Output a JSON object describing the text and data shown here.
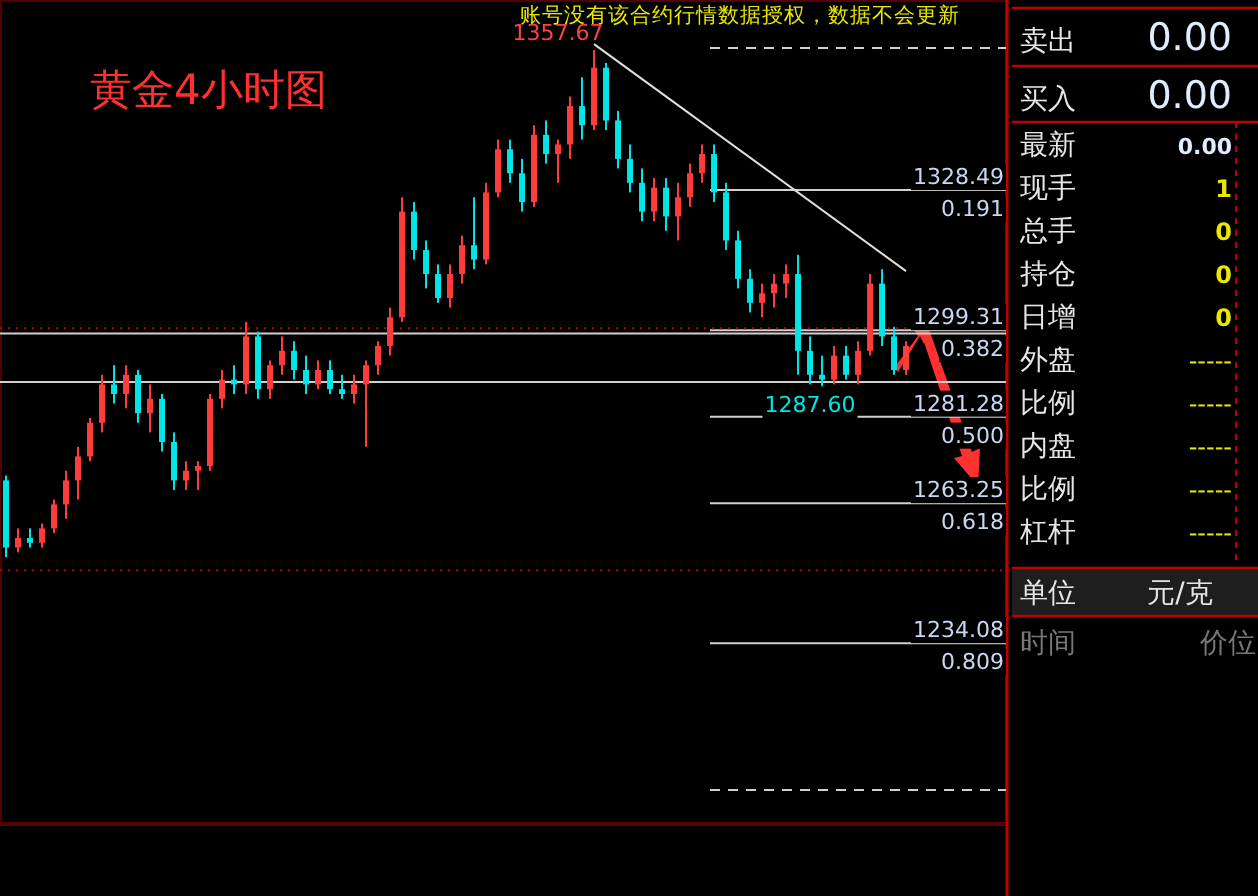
{
  "chart_data": [
    {
      "type": "candlestick",
      "title": "黄金4小时图",
      "annotations": [
        "账号没有该合约行情数据授权，数据不会更新",
        "1357.67",
        {
          "text": "1287.60",
          "y": 1287.6
        },
        {
          "text": "0.191",
          "y": 1328.49
        },
        {
          "text": "0.382",
          "y": 1299.31
        },
        {
          "text": "0.500",
          "y": 1281.28
        },
        {
          "text": "0.618",
          "y": 1263.25
        },
        {
          "text": "0.809",
          "y": 1234.08
        }
      ],
      "categories": [
        null,
        null,
        null,
        null,
        null,
        null,
        null,
        null,
        null,
        null,
        null,
        null,
        null,
        null,
        null,
        null,
        null,
        null,
        null,
        null,
        null,
        null,
        null,
        null,
        null,
        null,
        null,
        null,
        null,
        null,
        null,
        null,
        null,
        null,
        null,
        null,
        null,
        null,
        null,
        null,
        null,
        null,
        null,
        null,
        null,
        null,
        null,
        null,
        null,
        null,
        null,
        null,
        null,
        null,
        null,
        null,
        null,
        null,
        null,
        null,
        null,
        null,
        null,
        null,
        null,
        null,
        null,
        null,
        null,
        null,
        null,
        null,
        null,
        null,
        null,
        null
      ],
      "ohlc": [
        [
          1268,
          1269,
          1252,
          1254
        ],
        [
          1254,
          1258,
          1253,
          1256
        ],
        [
          1256,
          1258,
          1254,
          1255
        ],
        [
          1255,
          1259,
          1254,
          1258
        ],
        [
          1258,
          1264,
          1257,
          1263
        ],
        [
          1263,
          1270,
          1260,
          1268
        ],
        [
          1268,
          1275,
          1264,
          1273
        ],
        [
          1273,
          1281,
          1272,
          1280
        ],
        [
          1280,
          1290,
          1278,
          1288
        ],
        [
          1288,
          1292,
          1284,
          1286
        ],
        [
          1286,
          1292,
          1283,
          1290
        ],
        [
          1290,
          1291,
          1280,
          1282
        ],
        [
          1282,
          1288,
          1278,
          1285
        ],
        [
          1285,
          1286,
          1274,
          1276
        ],
        [
          1276,
          1278,
          1266,
          1268
        ],
        [
          1268,
          1272,
          1266,
          1270
        ],
        [
          1270,
          1272,
          1266,
          1271
        ],
        [
          1271,
          1286,
          1270,
          1285
        ],
        [
          1285,
          1291,
          1283,
          1289
        ],
        [
          1289,
          1292,
          1286,
          1288
        ],
        [
          1288,
          1301,
          1286,
          1298
        ],
        [
          1298,
          1299,
          1285,
          1287
        ],
        [
          1287,
          1293,
          1285,
          1292
        ],
        [
          1292,
          1298,
          1290,
          1295
        ],
        [
          1295,
          1297,
          1289,
          1291
        ],
        [
          1291,
          1294,
          1286,
          1288
        ],
        [
          1288,
          1293,
          1287,
          1291
        ],
        [
          1291,
          1293,
          1286,
          1287
        ],
        [
          1287,
          1290,
          1285,
          1286
        ],
        [
          1286,
          1290,
          1284,
          1288
        ],
        [
          1288,
          1293,
          1275,
          1292
        ],
        [
          1292,
          1297,
          1290,
          1296
        ],
        [
          1296,
          1304,
          1294,
          1302
        ],
        [
          1302,
          1327,
          1301,
          1324
        ],
        [
          1324,
          1326,
          1314,
          1316
        ],
        [
          1316,
          1318,
          1308,
          1311
        ],
        [
          1311,
          1313,
          1305,
          1306
        ],
        [
          1306,
          1313,
          1304,
          1311
        ],
        [
          1311,
          1319,
          1309,
          1317
        ],
        [
          1317,
          1327,
          1312,
          1314
        ],
        [
          1314,
          1330,
          1313,
          1328
        ],
        [
          1328,
          1339,
          1327,
          1337
        ],
        [
          1337,
          1339,
          1330,
          1332
        ],
        [
          1332,
          1335,
          1324,
          1326
        ],
        [
          1326,
          1342,
          1325,
          1340
        ],
        [
          1340,
          1343,
          1334,
          1336
        ],
        [
          1336,
          1339,
          1330,
          1338
        ],
        [
          1338,
          1348,
          1335,
          1346
        ],
        [
          1346,
          1352,
          1339,
          1342
        ],
        [
          1342,
          1357.67,
          1341,
          1354
        ],
        [
          1354,
          1355,
          1341,
          1343
        ],
        [
          1343,
          1345,
          1333,
          1335
        ],
        [
          1335,
          1338,
          1328,
          1330
        ],
        [
          1330,
          1333,
          1322,
          1324
        ],
        [
          1324,
          1331,
          1322,
          1329
        ],
        [
          1329,
          1331,
          1320,
          1323
        ],
        [
          1323,
          1330,
          1318,
          1327
        ],
        [
          1327,
          1334,
          1325,
          1332
        ],
        [
          1332,
          1338,
          1330,
          1336
        ],
        [
          1336,
          1338,
          1326,
          1328
        ],
        [
          1328,
          1330,
          1316,
          1318
        ],
        [
          1318,
          1320,
          1308,
          1310
        ],
        [
          1310,
          1312,
          1303,
          1305
        ],
        [
          1305,
          1309,
          1302,
          1307
        ],
        [
          1307,
          1311,
          1304,
          1309
        ],
        [
          1309,
          1313,
          1306,
          1311
        ],
        [
          1311,
          1315,
          1290,
          1295
        ],
        [
          1295,
          1298,
          1288,
          1290
        ],
        [
          1290,
          1294,
          1287.6,
          1289
        ],
        [
          1289,
          1296,
          1288,
          1294
        ],
        [
          1294,
          1296,
          1289,
          1290
        ],
        [
          1290,
          1297,
          1288,
          1295
        ],
        [
          1295,
          1311,
          1294,
          1309
        ],
        [
          1309,
          1312,
          1296,
          1298
        ],
        [
          1298,
          1300,
          1290,
          1291
        ],
        [
          1291,
          1297,
          1290,
          1296
        ]
      ],
      "series": [
        {
          "type": "line",
          "values": [
            null,
            null,
            null,
            null,
            null,
            null,
            null,
            null,
            null,
            null,
            null,
            null,
            null,
            null,
            null,
            null,
            null,
            null,
            null,
            null,
            null,
            null,
            null,
            null,
            null,
            null,
            null,
            null,
            null,
            null,
            null,
            null,
            null,
            null,
            null,
            null,
            null,
            null,
            null,
            null,
            null,
            null,
            null,
            null,
            null,
            null,
            null,
            null,
            null,
            1358.9,
            null,
            null,
            null,
            null,
            null,
            null,
            null,
            null,
            null,
            null,
            null,
            null,
            null,
            null,
            null,
            null,
            null,
            null,
            null,
            null,
            null,
            null,
            null,
            null,
            null,
            1311.6
          ],
          "color": "#e0e0e0"
        }
      ],
      "ylim": [
        1196.4,
        1368.1
      ],
      "ref_lines": [
        {
          "axis": "y",
          "value": 1328.49,
          "label": "1328.49",
          "color": "#d0d0d0"
        },
        {
          "axis": "y",
          "value": 1299.31,
          "label": "1299.31",
          "color": "#d0d0d0"
        },
        {
          "axis": "y",
          "value": 1281.28,
          "label": "1281.28",
          "color": "#d0d0d0"
        },
        {
          "axis": "y",
          "value": 1263.25,
          "label": "1263.25",
          "color": "#d0d0d0"
        },
        {
          "axis": "y",
          "value": 1234.08,
          "label": "1234.08",
          "color": "#d0d0d0"
        },
        {
          "axis": "y",
          "value": 1358.1,
          "color": "#d0d0d0",
          "line_style": "dashed"
        },
        {
          "axis": "y",
          "value": 1203.5,
          "color": "#d0d0d0",
          "line_style": "dashed"
        },
        {
          "axis": "y",
          "value": 1298.6,
          "color": "#d0d0d0"
        },
        {
          "axis": "y",
          "value": 1288.5,
          "color": "#d0d0d0"
        },
        {
          "axis": "y",
          "value": 1299.7,
          "color": "#c00000",
          "line_style": "dotted"
        },
        {
          "axis": "y",
          "value": 1249.3,
          "color": "#c00000",
          "line_style": "dotted"
        }
      ]
    },
    {
      "type": "other",
      "annotations": [
        "卖出",
        "0.00",
        "买入",
        "0.00",
        "最新",
        "0.00",
        "现手",
        "1",
        "总手",
        "0",
        "持仓",
        "0",
        "日增",
        "0",
        "外盘",
        "-----",
        "比例",
        "-----",
        "内盘",
        "-----",
        "比例",
        "-----",
        "杠杆",
        "-----",
        "单位",
        "元/克",
        "时间",
        "价位"
      ]
    }
  ]
}
